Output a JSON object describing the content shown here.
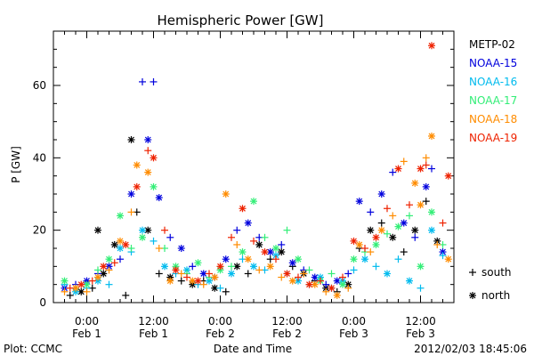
{
  "chart_data": {
    "type": "scatter",
    "title": "Hemispheric Power [GW]",
    "ylabel": "P [GW]",
    "xlabel": "Date and Time",
    "ylim": [
      0,
      75
    ],
    "yticks": [
      0,
      20,
      40,
      60
    ],
    "xlim": [
      -6,
      66
    ],
    "xticks": [
      {
        "x": 0,
        "label": "0:00",
        "sublabel": "Feb 1"
      },
      {
        "x": 12,
        "label": "12:00",
        "sublabel": "Feb 1"
      },
      {
        "x": 24,
        "label": "0:00",
        "sublabel": "Feb 2"
      },
      {
        "x": 36,
        "label": "12:00",
        "sublabel": "Feb 2"
      },
      {
        "x": 48,
        "label": "0:00",
        "sublabel": "Feb 3"
      },
      {
        "x": 60,
        "label": "12:00",
        "sublabel": "Feb 3"
      }
    ],
    "legend_position": "right",
    "marker_legend": [
      {
        "marker": "plus",
        "label": "south"
      },
      {
        "marker": "asterisk",
        "label": "north"
      }
    ],
    "series": [
      {
        "name": "METP-02",
        "color": "#000000",
        "points": [
          [
            -3,
            2,
            "+"
          ],
          [
            -1,
            3,
            "*"
          ],
          [
            1,
            4,
            "+"
          ],
          [
            2,
            20,
            "*"
          ],
          [
            3,
            8,
            "*"
          ],
          [
            5,
            16,
            "*"
          ],
          [
            7,
            2,
            "+"
          ],
          [
            8,
            45,
            "*"
          ],
          [
            9,
            25,
            "+"
          ],
          [
            11,
            20,
            "*"
          ],
          [
            13,
            8,
            "+"
          ],
          [
            15,
            7,
            "*"
          ],
          [
            17,
            6,
            "+"
          ],
          [
            19,
            5,
            "*"
          ],
          [
            21,
            6,
            "+"
          ],
          [
            23,
            4,
            "*"
          ],
          [
            25,
            3,
            "+"
          ],
          [
            27,
            10,
            "*"
          ],
          [
            29,
            8,
            "+"
          ],
          [
            31,
            16,
            "*"
          ],
          [
            33,
            12,
            "+"
          ],
          [
            35,
            14,
            "*"
          ],
          [
            37,
            10,
            "+"
          ],
          [
            39,
            8,
            "*"
          ],
          [
            41,
            6,
            "+"
          ],
          [
            43,
            4,
            "*"
          ],
          [
            45,
            3,
            "+"
          ],
          [
            47,
            5,
            "*"
          ],
          [
            49,
            15,
            "+"
          ],
          [
            51,
            20,
            "*"
          ],
          [
            53,
            22,
            "+"
          ],
          [
            55,
            18,
            "*"
          ],
          [
            57,
            14,
            "+"
          ],
          [
            59,
            20,
            "*"
          ],
          [
            61,
            28,
            "+"
          ],
          [
            63,
            17,
            "*"
          ]
        ]
      },
      {
        "name": "NOAA-15",
        "color": "#0000dd",
        "points": [
          [
            -4,
            4,
            "*"
          ],
          [
            -2,
            5,
            "+"
          ],
          [
            0,
            6,
            "*"
          ],
          [
            2,
            8,
            "+"
          ],
          [
            4,
            10,
            "*"
          ],
          [
            6,
            12,
            "+"
          ],
          [
            8,
            30,
            "*"
          ],
          [
            10,
            61,
            "+"
          ],
          [
            11,
            45,
            "*"
          ],
          [
            12,
            61,
            "+"
          ],
          [
            13,
            29,
            "*"
          ],
          [
            15,
            18,
            "+"
          ],
          [
            17,
            15,
            "*"
          ],
          [
            19,
            10,
            "+"
          ],
          [
            21,
            8,
            "*"
          ],
          [
            23,
            7,
            "+"
          ],
          [
            25,
            12,
            "*"
          ],
          [
            27,
            20,
            "+"
          ],
          [
            29,
            22,
            "*"
          ],
          [
            31,
            18,
            "+"
          ],
          [
            33,
            14,
            "*"
          ],
          [
            35,
            16,
            "+"
          ],
          [
            37,
            11,
            "*"
          ],
          [
            39,
            9,
            "+"
          ],
          [
            41,
            7,
            "*"
          ],
          [
            43,
            5,
            "+"
          ],
          [
            45,
            6,
            "*"
          ],
          [
            47,
            8,
            "+"
          ],
          [
            49,
            28,
            "*"
          ],
          [
            51,
            25,
            "+"
          ],
          [
            53,
            30,
            "*"
          ],
          [
            55,
            36,
            "+"
          ],
          [
            57,
            22,
            "*"
          ],
          [
            59,
            18,
            "+"
          ],
          [
            61,
            32,
            "*"
          ],
          [
            62,
            37,
            "+"
          ],
          [
            64,
            14,
            "*"
          ]
        ]
      },
      {
        "name": "NOAA-16",
        "color": "#00bbee",
        "points": [
          [
            -4,
            5,
            "+"
          ],
          [
            -2,
            3,
            "*"
          ],
          [
            0,
            4,
            "+"
          ],
          [
            2,
            6,
            "*"
          ],
          [
            4,
            5,
            "+"
          ],
          [
            6,
            15,
            "*"
          ],
          [
            8,
            14,
            "+"
          ],
          [
            10,
            20,
            "*"
          ],
          [
            12,
            17,
            "+"
          ],
          [
            14,
            10,
            "*"
          ],
          [
            16,
            8,
            "+"
          ],
          [
            18,
            9,
            "*"
          ],
          [
            20,
            5,
            "+"
          ],
          [
            22,
            6,
            "*"
          ],
          [
            24,
            4,
            "+"
          ],
          [
            26,
            8,
            "*"
          ],
          [
            28,
            12,
            "+"
          ],
          [
            30,
            10,
            "*"
          ],
          [
            32,
            9,
            "+"
          ],
          [
            34,
            13,
            "*"
          ],
          [
            36,
            8,
            "+"
          ],
          [
            38,
            6,
            "*"
          ],
          [
            40,
            5,
            "+"
          ],
          [
            42,
            7,
            "*"
          ],
          [
            44,
            4,
            "+"
          ],
          [
            46,
            6,
            "*"
          ],
          [
            48,
            9,
            "+"
          ],
          [
            50,
            12,
            "*"
          ],
          [
            52,
            10,
            "+"
          ],
          [
            54,
            8,
            "*"
          ],
          [
            56,
            12,
            "+"
          ],
          [
            58,
            6,
            "*"
          ],
          [
            60,
            4,
            "+"
          ],
          [
            62,
            20,
            "*"
          ],
          [
            64,
            13,
            "+"
          ]
        ]
      },
      {
        "name": "NOAA-17",
        "color": "#33ee77",
        "points": [
          [
            -4,
            6,
            "*"
          ],
          [
            -2,
            4,
            "+"
          ],
          [
            0,
            5,
            "*"
          ],
          [
            2,
            9,
            "+"
          ],
          [
            4,
            12,
            "*"
          ],
          [
            6,
            24,
            "*"
          ],
          [
            8,
            15,
            "+"
          ],
          [
            10,
            18,
            "*"
          ],
          [
            12,
            32,
            "*"
          ],
          [
            14,
            15,
            "+"
          ],
          [
            16,
            10,
            "*"
          ],
          [
            18,
            8,
            "+"
          ],
          [
            20,
            11,
            "*"
          ],
          [
            22,
            7,
            "+"
          ],
          [
            24,
            9,
            "*"
          ],
          [
            26,
            10,
            "+"
          ],
          [
            28,
            14,
            "*"
          ],
          [
            30,
            28,
            "*"
          ],
          [
            32,
            18,
            "+"
          ],
          [
            34,
            15,
            "*"
          ],
          [
            36,
            20,
            "+"
          ],
          [
            38,
            12,
            "*"
          ],
          [
            40,
            9,
            "+"
          ],
          [
            42,
            6,
            "*"
          ],
          [
            44,
            8,
            "+"
          ],
          [
            46,
            5,
            "*"
          ],
          [
            48,
            12,
            "*"
          ],
          [
            50,
            14,
            "+"
          ],
          [
            52,
            16,
            "*"
          ],
          [
            54,
            19,
            "+"
          ],
          [
            56,
            21,
            "*"
          ],
          [
            58,
            24,
            "+"
          ],
          [
            60,
            10,
            "*"
          ],
          [
            62,
            25,
            "*"
          ],
          [
            64,
            16,
            "+"
          ]
        ]
      },
      {
        "name": "NOAA-18",
        "color": "#ff8c00",
        "points": [
          [
            -4,
            3,
            "+"
          ],
          [
            -2,
            4,
            "*"
          ],
          [
            0,
            3,
            "+"
          ],
          [
            2,
            7,
            "*"
          ],
          [
            4,
            9,
            "+"
          ],
          [
            6,
            17,
            "*"
          ],
          [
            8,
            25,
            "+"
          ],
          [
            9,
            38,
            "*"
          ],
          [
            11,
            36,
            "*"
          ],
          [
            13,
            15,
            "+"
          ],
          [
            15,
            6,
            "*"
          ],
          [
            17,
            8,
            "+"
          ],
          [
            19,
            6,
            "*"
          ],
          [
            21,
            5,
            "+"
          ],
          [
            23,
            7,
            "*"
          ],
          [
            25,
            30,
            "*"
          ],
          [
            27,
            16,
            "+"
          ],
          [
            29,
            12,
            "*"
          ],
          [
            31,
            9,
            "+"
          ],
          [
            33,
            10,
            "*"
          ],
          [
            35,
            7,
            "+"
          ],
          [
            37,
            6,
            "*"
          ],
          [
            39,
            8,
            "+"
          ],
          [
            41,
            5,
            "*"
          ],
          [
            43,
            3,
            "+"
          ],
          [
            45,
            2,
            "*"
          ],
          [
            47,
            4,
            "+"
          ],
          [
            49,
            16,
            "*"
          ],
          [
            51,
            14,
            "+"
          ],
          [
            53,
            20,
            "*"
          ],
          [
            55,
            24,
            "+"
          ],
          [
            57,
            39,
            "+"
          ],
          [
            59,
            33,
            "*"
          ],
          [
            60,
            27,
            "*"
          ],
          [
            61,
            40,
            "+"
          ],
          [
            62,
            46,
            "*"
          ],
          [
            63,
            16,
            "+"
          ],
          [
            65,
            12,
            "*"
          ]
        ]
      },
      {
        "name": "NOAA-19",
        "color": "#ee2200",
        "points": [
          [
            -3,
            4,
            "+"
          ],
          [
            -1,
            5,
            "*"
          ],
          [
            1,
            6,
            "+"
          ],
          [
            3,
            10,
            "*"
          ],
          [
            5,
            11,
            "+"
          ],
          [
            7,
            16,
            "*"
          ],
          [
            9,
            32,
            "*"
          ],
          [
            11,
            42,
            "+"
          ],
          [
            12,
            40,
            "*"
          ],
          [
            14,
            20,
            "+"
          ],
          [
            16,
            9,
            "*"
          ],
          [
            18,
            7,
            "+"
          ],
          [
            20,
            6,
            "*"
          ],
          [
            22,
            8,
            "+"
          ],
          [
            24,
            10,
            "*"
          ],
          [
            26,
            18,
            "+"
          ],
          [
            28,
            26,
            "*"
          ],
          [
            30,
            17,
            "+"
          ],
          [
            32,
            14,
            "*"
          ],
          [
            34,
            12,
            "+"
          ],
          [
            36,
            8,
            "*"
          ],
          [
            38,
            7,
            "+"
          ],
          [
            40,
            5,
            "*"
          ],
          [
            42,
            6,
            "+"
          ],
          [
            44,
            4,
            "*"
          ],
          [
            46,
            7,
            "+"
          ],
          [
            48,
            17,
            "*"
          ],
          [
            50,
            15,
            "+"
          ],
          [
            52,
            18,
            "*"
          ],
          [
            54,
            26,
            "+"
          ],
          [
            56,
            37,
            "*"
          ],
          [
            58,
            27,
            "+"
          ],
          [
            60,
            37,
            "*"
          ],
          [
            61,
            38,
            "+"
          ],
          [
            62,
            71,
            "*"
          ],
          [
            64,
            22,
            "+"
          ],
          [
            65,
            35,
            "*"
          ]
        ]
      }
    ]
  },
  "footer": {
    "left": "Plot: CCMC",
    "right": "2012/02/03 18:45:06"
  }
}
